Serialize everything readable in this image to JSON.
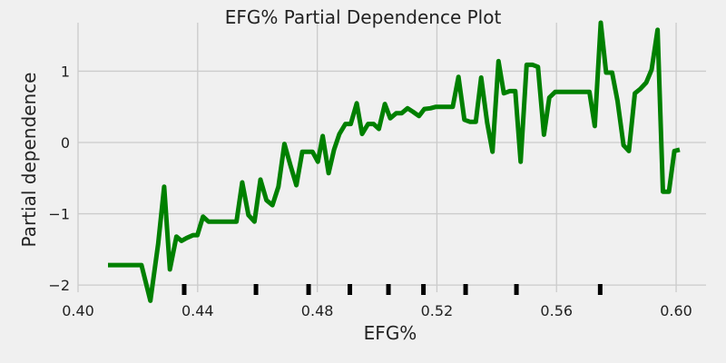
{
  "chart_data": {
    "type": "line",
    "title": "EFG% Partial Dependence Plot",
    "xlabel": "EFG%",
    "ylabel": "Partial dependence",
    "xlim": [
      0.4,
      0.61
    ],
    "ylim": [
      -2.1,
      1.68
    ],
    "grid": true,
    "xticks": [
      {
        "value": 0.4,
        "label": "0.40"
      },
      {
        "value": 0.44,
        "label": "0.44"
      },
      {
        "value": 0.48,
        "label": "0.48"
      },
      {
        "value": 0.52,
        "label": "0.52"
      },
      {
        "value": 0.56,
        "label": "0.56"
      },
      {
        "value": 0.6,
        "label": "0.60"
      }
    ],
    "yticks": [
      {
        "value": -2,
        "label": "−2"
      },
      {
        "value": -1,
        "label": "−1"
      },
      {
        "value": 0,
        "label": "0"
      },
      {
        "value": 1,
        "label": "1"
      }
    ],
    "deciles": [
      0.4355,
      0.4595,
      0.4771,
      0.4909,
      0.5038,
      0.5155,
      0.5296,
      0.5466,
      0.5746
    ],
    "series": [
      {
        "color": "#008000",
        "x": [
          0.41,
          0.4212,
          0.4242,
          0.4268,
          0.4288,
          0.4307,
          0.4329,
          0.4346,
          0.4363,
          0.4385,
          0.4399,
          0.4418,
          0.4436,
          0.4455,
          0.4473,
          0.4494,
          0.4512,
          0.453,
          0.4549,
          0.457,
          0.459,
          0.461,
          0.463,
          0.465,
          0.467,
          0.469,
          0.471,
          0.473,
          0.475,
          0.477,
          0.4784,
          0.4802,
          0.4818,
          0.4838,
          0.4856,
          0.4874,
          0.4894,
          0.4912,
          0.4932,
          0.495,
          0.497,
          0.4988,
          0.5006,
          0.5026,
          0.5044,
          0.5064,
          0.5082,
          0.5102,
          0.512,
          0.514,
          0.5158,
          0.5178,
          0.5197,
          0.5215,
          0.5235,
          0.5253,
          0.5272,
          0.5292,
          0.531,
          0.533,
          0.5348,
          0.5368,
          0.5386,
          0.5406,
          0.5424,
          0.5444,
          0.5462,
          0.548,
          0.55,
          0.552,
          0.5538,
          0.5558,
          0.5576,
          0.5596,
          0.5614,
          0.5634,
          0.5652,
          0.567,
          0.569,
          0.571,
          0.5728,
          0.5748,
          0.5766,
          0.5786,
          0.5804,
          0.5824,
          0.5842,
          0.5862,
          0.588,
          0.59,
          0.5918,
          0.5938,
          0.5956,
          0.5976,
          0.5994,
          0.6012
        ],
        "y": [
          -1.72,
          -1.72,
          -2.22,
          -1.42,
          -0.62,
          -1.78,
          -1.32,
          -1.38,
          -1.34,
          -1.3,
          -1.3,
          -1.04,
          -1.11,
          -1.11,
          -1.11,
          -1.11,
          -1.11,
          -1.11,
          -0.56,
          -1.02,
          -1.11,
          -0.52,
          -0.81,
          -0.88,
          -0.62,
          -0.02,
          -0.32,
          -0.6,
          -0.13,
          -0.13,
          -0.13,
          -0.27,
          0.09,
          -0.43,
          -0.1,
          0.12,
          0.26,
          0.26,
          0.55,
          0.12,
          0.26,
          0.26,
          0.19,
          0.54,
          0.34,
          0.41,
          0.41,
          0.48,
          0.43,
          0.37,
          0.47,
          0.48,
          0.5,
          0.5,
          0.5,
          0.5,
          0.92,
          0.32,
          0.29,
          0.29,
          0.91,
          0.28,
          -0.13,
          1.14,
          0.69,
          0.72,
          0.72,
          -0.27,
          1.09,
          1.09,
          1.06,
          0.11,
          0.63,
          0.71,
          0.71,
          0.71,
          0.71,
          0.71,
          0.71,
          0.71,
          0.23,
          1.68,
          0.98,
          0.98,
          0.58,
          -0.04,
          -0.12,
          0.69,
          0.75,
          0.84,
          1.02,
          1.58,
          -0.69,
          -0.69,
          -0.12,
          -0.1
        ]
      }
    ]
  }
}
